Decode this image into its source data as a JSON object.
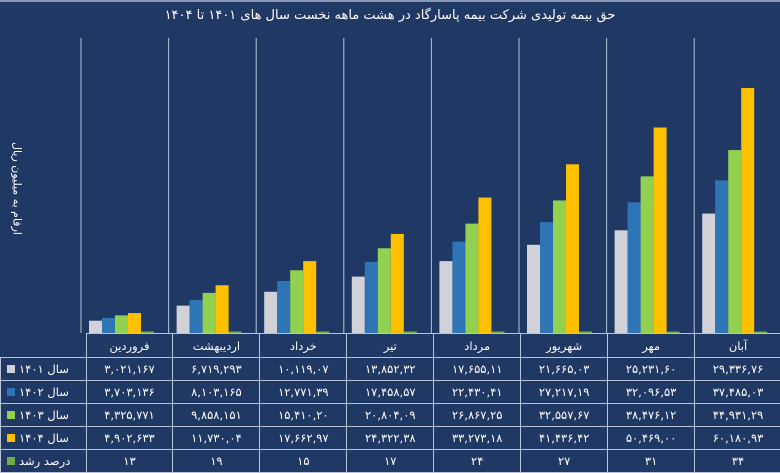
{
  "chart_data": {
    "type": "bar",
    "title": "حق بیمه تولیدی شرکت بیمه پاسارگاد در هشت ماهه نخست سال های ۱۴۰۱ تا ۱۴۰۴",
    "ylabel": "ارقام به میلیون ریال",
    "xlabel": "",
    "ylim": [
      0,
      70000
    ],
    "grid": false,
    "legend": "table-left",
    "categories": [
      "فروردین",
      "اردیبهشت",
      "خرداد",
      "تیر",
      "مرداد",
      "شهریور",
      "مهر",
      "آبان"
    ],
    "series": [
      {
        "name": "سال ۱۴۰۱",
        "color": "#d0d2d8",
        "values": [
          3021.167,
          6719.293,
          10119.07,
          13852.32,
          17655.11,
          21665.03,
          25231.6,
          29336.76
        ],
        "labels": [
          "۳,۰۲۱,۱۶۷",
          "۶,۷۱۹,۲۹۳",
          "۱۰,۱۱۹,۰۷",
          "۱۳,۸۵۲,۳۲",
          "۱۷,۶۵۵,۱۱",
          "۲۱,۶۶۵,۰۳",
          "۲۵,۲۳۱,۶۰",
          "۲۹,۳۳۶,۷۶"
        ]
      },
      {
        "name": "سال ۱۴۰۲",
        "color": "#2e75b6",
        "values": [
          3703.136,
          8103.165,
          12771.39,
          17458.57,
          22430.41,
          27217.19,
          32096.53,
          37485.03
        ],
        "labels": [
          "۳,۷۰۳,۱۳۶",
          "۸,۱۰۳,۱۶۵",
          "۱۲,۷۷۱,۳۹",
          "۱۷,۴۵۸,۵۷",
          "۲۲,۴۳۰,۴۱",
          "۲۷,۲۱۷,۱۹",
          "۳۲,۰۹۶,۵۳",
          "۳۷,۴۸۵,۰۳"
        ]
      },
      {
        "name": "سال ۱۴۰۳",
        "color": "#92d050",
        "values": [
          4325.771,
          9858.151,
          15410.2,
          20804.09,
          26867.25,
          32557.67,
          38476.12,
          44931.29
        ],
        "labels": [
          "۴,۳۲۵,۷۷۱",
          "۹,۸۵۸,۱۵۱",
          "۱۵,۴۱۰,۲۰",
          "۲۰,۸۰۴,۰۹",
          "۲۶,۸۶۷,۲۵",
          "۳۲,۵۵۷,۶۷",
          "۳۸,۴۷۶,۱۲",
          "۴۴,۹۳۱,۲۹"
        ]
      },
      {
        "name": "سال ۱۴۰۴",
        "color": "#ffc000",
        "values": [
          4902.633,
          11730.04,
          17662.97,
          24322.38,
          33273.18,
          41436.42,
          50469.0,
          60180.93
        ],
        "labels": [
          "۴,۹۰۲,۶۳۳",
          "۱۱,۷۳۰,۰۴",
          "۱۷,۶۶۲,۹۷",
          "۲۴,۳۲۲,۳۸",
          "۳۳,۲۷۳,۱۸",
          "۴۱,۴۳۶,۴۲",
          "۵۰,۴۶۹,۰۰",
          "۶۰,۱۸۰,۹۳"
        ]
      },
      {
        "name": "درصد رشد",
        "color": "#70ad47",
        "values": [
          13,
          19,
          15,
          17,
          24,
          27,
          31,
          34
        ],
        "labels": [
          "۱۳",
          "۱۹",
          "۱۵",
          "۱۷",
          "۲۴",
          "۲۷",
          "۳۱",
          "۳۴"
        ]
      }
    ]
  }
}
